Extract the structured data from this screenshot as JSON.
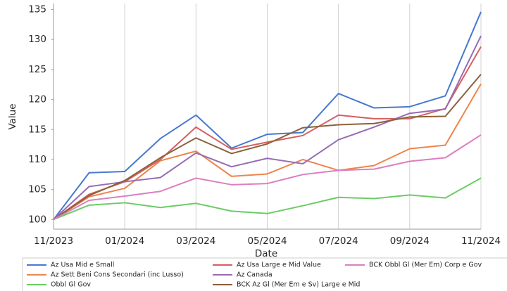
{
  "chart_data": {
    "type": "line",
    "x_label": "Date",
    "y_label": "Value",
    "categories": [
      "11/2023",
      null,
      "01/2024",
      null,
      "03/2024",
      null,
      "05/2024",
      null,
      "07/2024",
      null,
      "09/2024",
      null,
      "11/2024"
    ],
    "series": [
      {
        "name": "Az Usa Mid e Small",
        "color": "#4878d0",
        "values": [
          100,
          107.8,
          108,
          113.5,
          117.4,
          111.9,
          114.2,
          114.5,
          121,
          118.6,
          118.8,
          120.6,
          134.6
        ]
      },
      {
        "name": "Az Sett Beni Cons Secondari (inc Lusso)",
        "color": "#ee854a",
        "values": [
          100,
          103.8,
          105.2,
          109.8,
          111.4,
          107.2,
          107.6,
          110,
          108.2,
          109,
          111.8,
          112.4,
          122.6
        ]
      },
      {
        "name": "Obbl Gl Gov",
        "color": "#6acc64",
        "values": [
          100,
          102.4,
          102.8,
          102,
          102.7,
          101.4,
          101,
          102.3,
          103.7,
          103.5,
          104.1,
          103.6,
          106.9
        ]
      },
      {
        "name": "Az Usa Large e Mid Value",
        "color": "#d65f5f",
        "values": [
          100,
          104.2,
          106.3,
          110,
          115.4,
          111.7,
          112.9,
          114,
          117.4,
          116.8,
          116.8,
          118.5,
          128.8
        ]
      },
      {
        "name": "Az Canada",
        "color": "#956cb4",
        "values": [
          100,
          105.5,
          106.3,
          107,
          111.1,
          108.8,
          110.2,
          109.3,
          113.3,
          115.4,
          117.7,
          118.4,
          130.6
        ]
      },
      {
        "name": "BCK Az Gl (Mer Em e Sv) Large e Mid",
        "color": "#8c613c",
        "values": [
          100,
          104,
          106.5,
          110.3,
          113.6,
          111,
          112.6,
          115.3,
          115.8,
          116,
          117.1,
          117.2,
          124.2
        ]
      },
      {
        "name": "BCK Obbl Gl (Mer Em) Corp e Gov",
        "color": "#dc7ec0",
        "values": [
          100,
          103.2,
          103.9,
          104.7,
          106.9,
          105.8,
          106,
          107.5,
          108.2,
          108.4,
          109.7,
          110.3,
          114.1
        ]
      }
    ],
    "ylim": [
      98.4,
      136
    ],
    "yticks": [
      100,
      105,
      110,
      115,
      120,
      125,
      130,
      135
    ],
    "grid": "x",
    "legend": "bottom"
  }
}
